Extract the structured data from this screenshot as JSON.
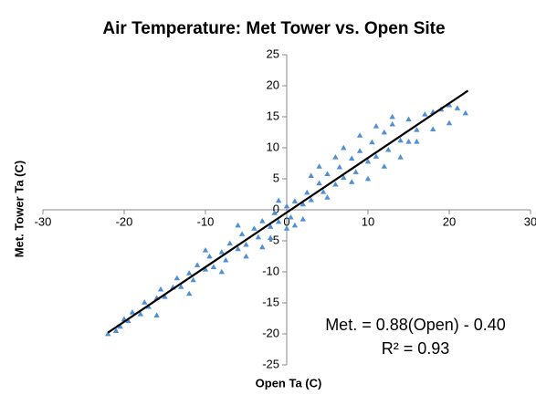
{
  "chart_data": {
    "type": "scatter",
    "title": "Air Temperature: Met Tower vs. Open Site",
    "x_label": "Open Ta (C)",
    "y_label": "Met. Tower Ta (C)",
    "annotations": [
      "Met. = 0.88(Open) - 0.40",
      "R² = 0.93"
    ],
    "xlim": [
      -30,
      30
    ],
    "xticks": [
      -30,
      -20,
      -10,
      0,
      10,
      20,
      30
    ],
    "ylim": [
      -25,
      25
    ],
    "yticks": [
      -25,
      -20,
      -15,
      -10,
      -5,
      0,
      5,
      10,
      15,
      20,
      25
    ],
    "marker_color": "#4f8fd6",
    "trendline": {
      "color": "#000000",
      "x": [
        -22,
        22.3
      ],
      "y": [
        -19.8,
        19.2
      ]
    },
    "x": [
      -22,
      -21,
      -20.5,
      -20,
      -19.5,
      -19,
      -18,
      -17.5,
      -17,
      -16,
      -15.5,
      -15,
      -14,
      -13.5,
      -13,
      -12,
      -11.5,
      -11,
      -10,
      -9.5,
      -9,
      -8,
      -7.5,
      -7,
      -6,
      -5.5,
      -5,
      -4,
      -3.5,
      -3,
      -2,
      -1.5,
      -1,
      0,
      0.5,
      1,
      2,
      2.5,
      3,
      4,
      4.5,
      5,
      6,
      6.5,
      7,
      8,
      8.5,
      9,
      10,
      10.5,
      11,
      12,
      12.5,
      13,
      14,
      15,
      16,
      17,
      18,
      19,
      20,
      21,
      22,
      -16,
      -12,
      -8,
      -5,
      -2,
      2,
      5,
      8,
      10,
      12,
      14,
      -10,
      -6,
      3,
      6,
      9,
      11,
      15,
      20,
      7,
      4,
      13,
      18,
      0,
      -1,
      -3,
      1,
      16
    ],
    "y": [
      -20,
      -19.5,
      -18.8,
      -17.6,
      -17.9,
      -16.5,
      -16.8,
      -14.9,
      -15.6,
      -14.2,
      -12.8,
      -14,
      -12.5,
      -11,
      -12.4,
      -10.2,
      -11.3,
      -8.9,
      -9.6,
      -7.5,
      -9.2,
      -6.8,
      -8.1,
      -5.4,
      -6.3,
      -3.9,
      -5.6,
      -3,
      -4.4,
      -1.8,
      -2.7,
      -0.5,
      -1.9,
      0.6,
      -1.2,
      1.4,
      0.9,
      2.8,
      1.6,
      4.3,
      2.9,
      5.8,
      4.1,
      6.9,
      5.2,
      8.3,
      6.1,
      9.5,
      7.8,
      10.9,
      8.6,
      12.5,
      9.7,
      13.8,
      11.2,
      14.6,
      12.9,
      15.4,
      15.8,
      16.2,
      16.9,
      16.4,
      15.6,
      -17,
      -13.5,
      -10,
      -7.5,
      -4.5,
      -1.5,
      2,
      4.5,
      5,
      7,
      8.5,
      -6.5,
      -2.5,
      5.5,
      8.5,
      12,
      13.5,
      11,
      14,
      10,
      7,
      15,
      13,
      -3,
      1.5,
      -6,
      -2.5,
      11
    ]
  }
}
